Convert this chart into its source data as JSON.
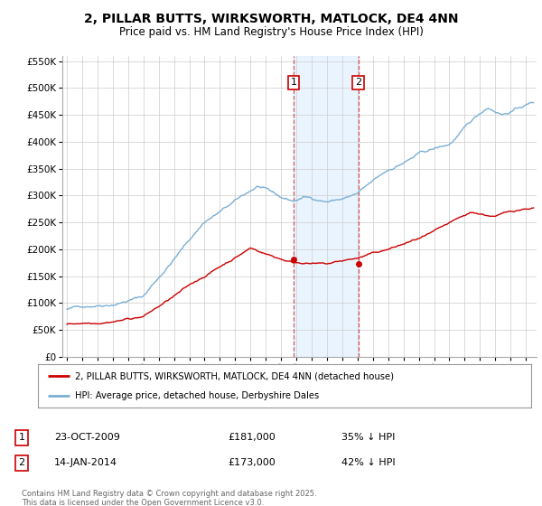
{
  "title": "2, PILLAR BUTTS, WIRKSWORTH, MATLOCK, DE4 4NN",
  "subtitle": "Price paid vs. HM Land Registry's House Price Index (HPI)",
  "legend_property": "2, PILLAR BUTTS, WIRKSWORTH, MATLOCK, DE4 4NN (detached house)",
  "legend_hpi": "HPI: Average price, detached house, Derbyshire Dales",
  "transaction1_date": "23-OCT-2009",
  "transaction1_price": "£181,000",
  "transaction1_hpi": "35% ↓ HPI",
  "transaction1_year": 2009.81,
  "transaction1_value": 181000,
  "transaction2_date": "14-JAN-2014",
  "transaction2_price": "£173,000",
  "transaction2_hpi": "42% ↓ HPI",
  "transaction2_year": 2014.04,
  "transaction2_value": 173000,
  "property_color": "#cc0000",
  "hpi_color": "#7bafd4",
  "shaded_color": "#ddeeff",
  "background_color": "#ffffff",
  "grid_color": "#cccccc",
  "footer": "Contains HM Land Registry data © Crown copyright and database right 2025.\nThis data is licensed under the Open Government Licence v3.0.",
  "ylim": [
    0,
    560000
  ],
  "xlim_start": 1994.7,
  "xlim_end": 2025.7
}
